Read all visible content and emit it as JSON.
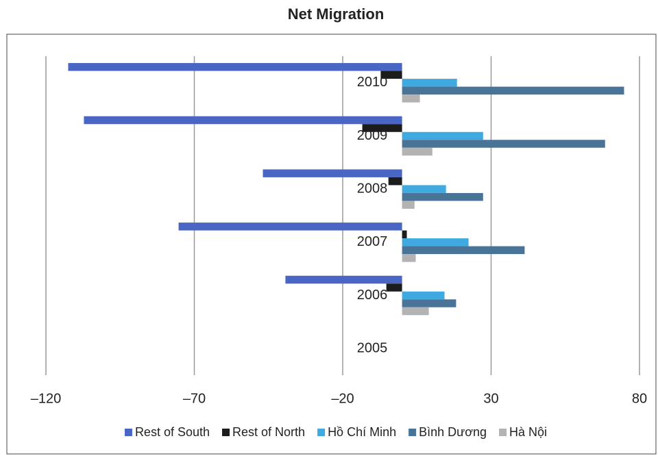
{
  "chart_data": {
    "type": "hbar",
    "title": "Net Migration",
    "categories": [
      "2005",
      "2006",
      "2007",
      "2008",
      "2009",
      "2010"
    ],
    "series": [
      {
        "name": "Rest of South",
        "color": "#4a66c4",
        "values": [
          null,
          -39.3,
          -75.3,
          -46.9,
          -107.2,
          -112.5
        ]
      },
      {
        "name": "Rest of North",
        "color": "#1c1c1c",
        "values": [
          null,
          -5.3,
          1.6,
          -4.6,
          -13.4,
          -7.2
        ]
      },
      {
        "name": "Hồ Chí Minh",
        "color": "#3fa9e0",
        "values": [
          null,
          14.3,
          22.4,
          14.8,
          27.3,
          18.5
        ]
      },
      {
        "name": "Bình Dương",
        "color": "#4a7398",
        "values": [
          null,
          18.2,
          41.3,
          27.3,
          68.4,
          74.8
        ]
      },
      {
        "name": "Hà Nội",
        "color": "#b3b3b3",
        "values": [
          null,
          9,
          4.6,
          4.2,
          10.2,
          6
        ]
      }
    ],
    "xlim": [
      -120,
      80
    ],
    "xticks": [
      {
        "value": -120,
        "label": "–120"
      },
      {
        "value": -70,
        "label": "–70"
      },
      {
        "value": -20,
        "label": "–20"
      },
      30,
      80
    ],
    "grid": true,
    "legend": "bottom"
  }
}
